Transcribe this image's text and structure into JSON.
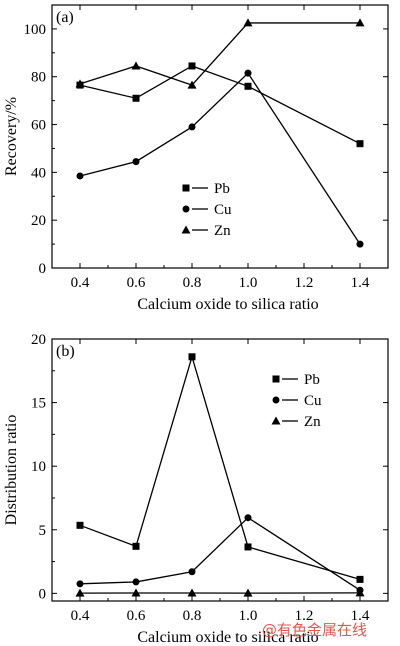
{
  "chart_data": [
    {
      "type": "line",
      "panel_label": "(a)",
      "xlabel": "Calcium oxide to silica ratio",
      "ylabel": "Recovery/%",
      "xlim": [
        0.3,
        1.5
      ],
      "ylim": [
        0,
        110
      ],
      "x_ticks": [
        0.4,
        0.6,
        0.8,
        1.0,
        1.2,
        1.4
      ],
      "x_tick_labels": [
        "0.4",
        "0.6",
        "0.8",
        "1.0",
        "1.2",
        "1.4"
      ],
      "y_ticks": [
        0,
        20,
        40,
        60,
        80,
        100
      ],
      "y_tick_labels": [
        "0",
        "20",
        "40",
        "60",
        "80",
        "100"
      ],
      "x": [
        0.4,
        0.6,
        0.8,
        1.0,
        1.4
      ],
      "legend_position": "center-left",
      "grid": false,
      "series": [
        {
          "name": "Pb",
          "marker": "square",
          "values": [
            76.5,
            71,
            84.5,
            76,
            52
          ]
        },
        {
          "name": "Cu",
          "marker": "circle",
          "values": [
            38.5,
            44.5,
            59,
            81.5,
            10
          ]
        },
        {
          "name": "Zn",
          "marker": "triangle",
          "values": [
            77,
            84.5,
            76.5,
            102.5,
            102.5
          ]
        }
      ]
    },
    {
      "type": "line",
      "panel_label": "(b)",
      "xlabel": "Calcium oxide to silica ratio",
      "ylabel": "Distribution ratio",
      "xlim": [
        0.3,
        1.5
      ],
      "ylim": [
        -0.6,
        20
      ],
      "x_ticks": [
        0.4,
        0.6,
        0.8,
        1.0,
        1.2,
        1.4
      ],
      "x_tick_labels": [
        "0.4",
        "0.6",
        "0.8",
        "1.0",
        "1.2",
        "1.4"
      ],
      "y_ticks": [
        0,
        5,
        10,
        15,
        20
      ],
      "y_tick_labels": [
        "0",
        "5",
        "10",
        "15",
        "20"
      ],
      "x": [
        0.4,
        0.6,
        0.8,
        1.0,
        1.4
      ],
      "legend_position": "top-right",
      "grid": false,
      "series": [
        {
          "name": "Pb",
          "marker": "square",
          "values": [
            5.35,
            3.7,
            18.6,
            3.65,
            1.1
          ]
        },
        {
          "name": "Cu",
          "marker": "circle",
          "values": [
            0.75,
            0.9,
            1.7,
            5.95,
            0.25
          ]
        },
        {
          "name": "Zn",
          "marker": "triangle",
          "values": [
            0.02,
            0.03,
            0.03,
            0.02,
            0.04
          ]
        }
      ]
    }
  ],
  "watermark": "@有色金属在线"
}
